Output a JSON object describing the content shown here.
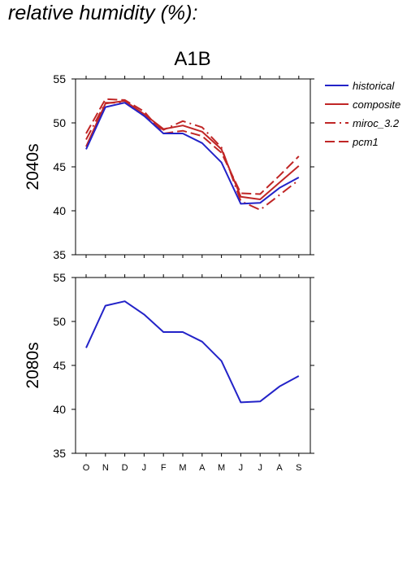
{
  "page": {
    "title": "relative humidity (%):"
  },
  "colors": {
    "historical": "#2323c8",
    "composite": "#c02626",
    "miroc_3.2": "#c02626",
    "pcm1": "#c02626"
  },
  "chart_data": [
    {
      "type": "line",
      "title": "A1B",
      "ylabel": "2040s",
      "categories": [
        "O",
        "N",
        "D",
        "J",
        "F",
        "M",
        "A",
        "M",
        "J",
        "J",
        "A",
        "S"
      ],
      "ylim": [
        35,
        55
      ],
      "yticks": [
        35,
        40,
        45,
        50,
        55
      ],
      "grid": false,
      "legend_position": "right",
      "series": [
        {
          "name": "historical",
          "style": "solid",
          "values": [
            47.0,
            51.8,
            52.3,
            50.8,
            48.8,
            48.8,
            47.7,
            45.5,
            40.8,
            40.9,
            42.6,
            43.8
          ]
        },
        {
          "name": "composite",
          "style": "solid",
          "values": [
            47.3,
            52.2,
            52.5,
            51.0,
            49.3,
            49.7,
            49.0,
            47.0,
            41.6,
            41.3,
            43.2,
            45.1
          ]
        },
        {
          "name": "miroc_3.2",
          "style": "dashdot",
          "values": [
            48.1,
            52.3,
            52.3,
            50.8,
            49.2,
            50.2,
            49.5,
            47.2,
            41.1,
            40.1,
            41.8,
            43.5
          ]
        },
        {
          "name": "pcm1",
          "style": "dashed",
          "values": [
            48.8,
            52.7,
            52.6,
            51.3,
            48.8,
            49.1,
            48.5,
            46.6,
            42.0,
            41.9,
            44.0,
            46.2
          ]
        }
      ]
    },
    {
      "type": "line",
      "title": "",
      "ylabel": "2080s",
      "categories": [
        "O",
        "N",
        "D",
        "J",
        "F",
        "M",
        "A",
        "M",
        "J",
        "J",
        "A",
        "S"
      ],
      "ylim": [
        35,
        55
      ],
      "yticks": [
        35,
        40,
        45,
        50,
        55
      ],
      "grid": false,
      "series": [
        {
          "name": "historical",
          "style": "solid",
          "values": [
            47.0,
            51.8,
            52.3,
            50.8,
            48.8,
            48.8,
            47.7,
            45.5,
            40.8,
            40.9,
            42.6,
            43.8
          ]
        }
      ]
    }
  ]
}
